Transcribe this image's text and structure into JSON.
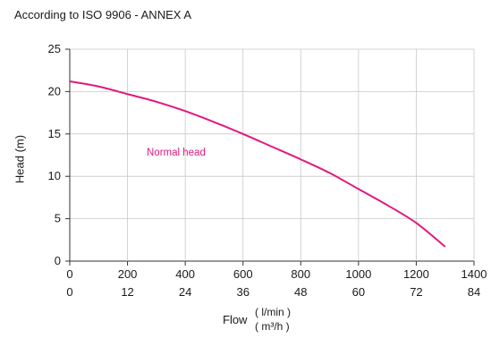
{
  "header": {
    "standard_note": "According to ISO 9906 - ANNEX A"
  },
  "chart_data": {
    "type": "line",
    "xlabel": "Flow",
    "xunit_primary": "( l/min )",
    "xunit_secondary": "( m³/h )",
    "ylabel": "Head (m)",
    "xlim": [
      0,
      1400
    ],
    "ylim": [
      0,
      25
    ],
    "yticks": [
      0,
      5,
      10,
      15,
      20,
      25
    ],
    "xticks_primary": [
      "0",
      "200",
      "400",
      "600",
      "800",
      "1000",
      "1200",
      "1400"
    ],
    "xticks_secondary": [
      "0",
      "12",
      "24",
      "36",
      "48",
      "60",
      "72",
      "84"
    ],
    "grid": true,
    "series": [
      {
        "name": "Normal head",
        "color": "#e0197d",
        "x": [
          0,
          100,
          200,
          300,
          400,
          500,
          600,
          700,
          800,
          900,
          1000,
          1100,
          1200,
          1300
        ],
        "y": [
          21.2,
          20.6,
          19.7,
          18.8,
          17.7,
          16.4,
          15.0,
          13.5,
          12.0,
          10.4,
          8.5,
          6.6,
          4.5,
          1.7
        ]
      }
    ]
  }
}
